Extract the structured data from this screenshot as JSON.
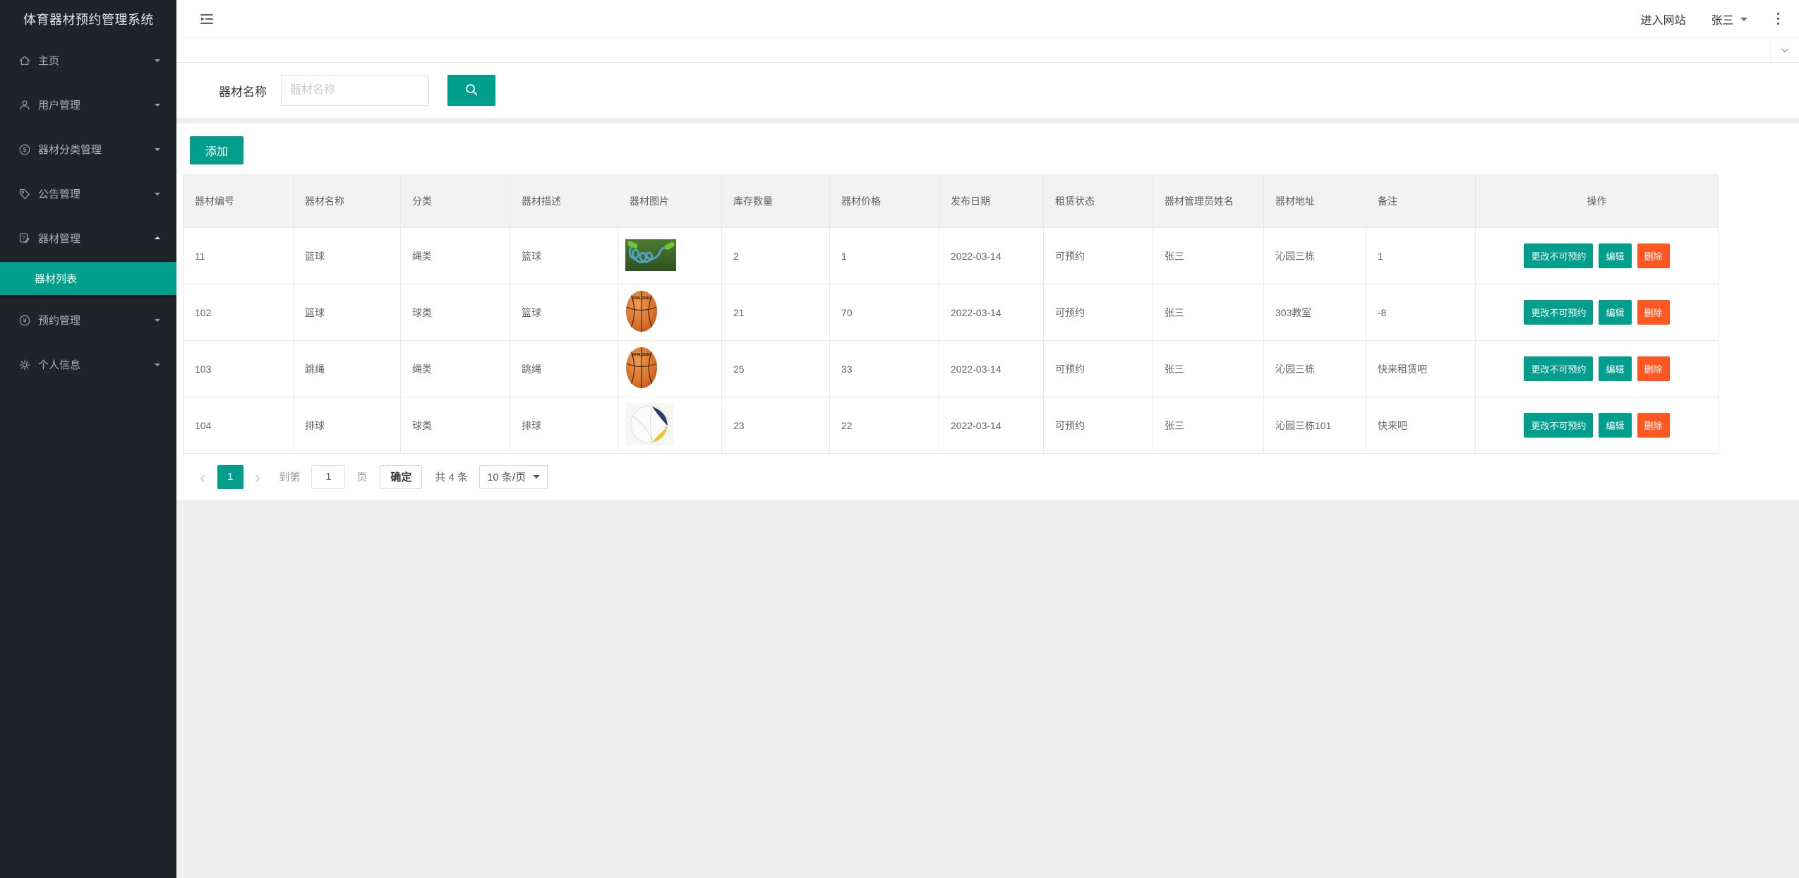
{
  "app": {
    "title": "体育器材预约管理系统"
  },
  "topbar": {
    "enter_site_label": "进入网站",
    "username": "张三"
  },
  "sidebar": {
    "items": [
      {
        "key": "home",
        "label": "主页",
        "icon": "home-icon",
        "expanded": false
      },
      {
        "key": "user-management",
        "label": "用户管理",
        "icon": "user-icon",
        "expanded": false
      },
      {
        "key": "equipment-category-management",
        "label": "器材分类管理",
        "icon": "dollar-circle-icon",
        "expanded": false
      },
      {
        "key": "announcement-management",
        "label": "公告管理",
        "icon": "tag-icon",
        "expanded": false
      },
      {
        "key": "equipment-management",
        "label": "器材管理",
        "icon": "edit-note-icon",
        "expanded": true,
        "children": [
          {
            "key": "equipment-list",
            "label": "器材列表",
            "active": true
          }
        ]
      },
      {
        "key": "reservation-management",
        "label": "预约管理",
        "icon": "yen-circle-icon",
        "expanded": false
      },
      {
        "key": "profile",
        "label": "个人信息",
        "icon": "gear-icon",
        "expanded": false
      }
    ]
  },
  "search": {
    "label": "器材名称",
    "placeholder": "器材名称",
    "value": ""
  },
  "toolbar": {
    "add_label": "添加"
  },
  "table": {
    "headers": [
      "器材编号",
      "器材名称",
      "分类",
      "器材描述",
      "器材图片",
      "库存数量",
      "器材价格",
      "发布日期",
      "租赁状态",
      "器材管理员姓名",
      "器材地址",
      "备注",
      "操作"
    ],
    "rows": [
      {
        "id": "11",
        "name": "篮球",
        "category": "绳类",
        "desc": "篮球",
        "image": "jump-rope",
        "stock": "2",
        "price": "1",
        "date": "2022-03-14",
        "status": "可预约",
        "manager": "张三",
        "address": "沁园三栋",
        "remark": "1"
      },
      {
        "id": "102",
        "name": "篮球",
        "category": "球类",
        "desc": "篮球",
        "image": "basketball",
        "stock": "21",
        "price": "70",
        "date": "2022-03-14",
        "status": "可预约",
        "manager": "张三",
        "address": "303教室",
        "remark": "-8"
      },
      {
        "id": "103",
        "name": "跳绳",
        "category": "绳类",
        "desc": "跳绳",
        "image": "basketball",
        "stock": "25",
        "price": "33",
        "date": "2022-03-14",
        "status": "可预约",
        "manager": "张三",
        "address": "沁园三栋",
        "remark": "快来租赁吧"
      },
      {
        "id": "104",
        "name": "排球",
        "category": "球类",
        "desc": "排球",
        "image": "volleyball",
        "stock": "23",
        "price": "22",
        "date": "2022-03-14",
        "status": "可预约",
        "manager": "张三",
        "address": "沁园三栋101",
        "remark": "快来吧"
      }
    ],
    "actions": {
      "toggle_label": "更改不可预约",
      "edit_label": "编辑",
      "delete_label": "删除"
    }
  },
  "pagination": {
    "current_page": "1",
    "goto_label": "到第",
    "goto_value": "1",
    "page_unit_label": "页",
    "confirm_label": "确定",
    "total_label": "共 4 条",
    "page_size_label": "10 条/页"
  },
  "colors": {
    "accent": "#009E8C",
    "danger": "#FF5722",
    "sidebar_bg": "#20232A"
  }
}
